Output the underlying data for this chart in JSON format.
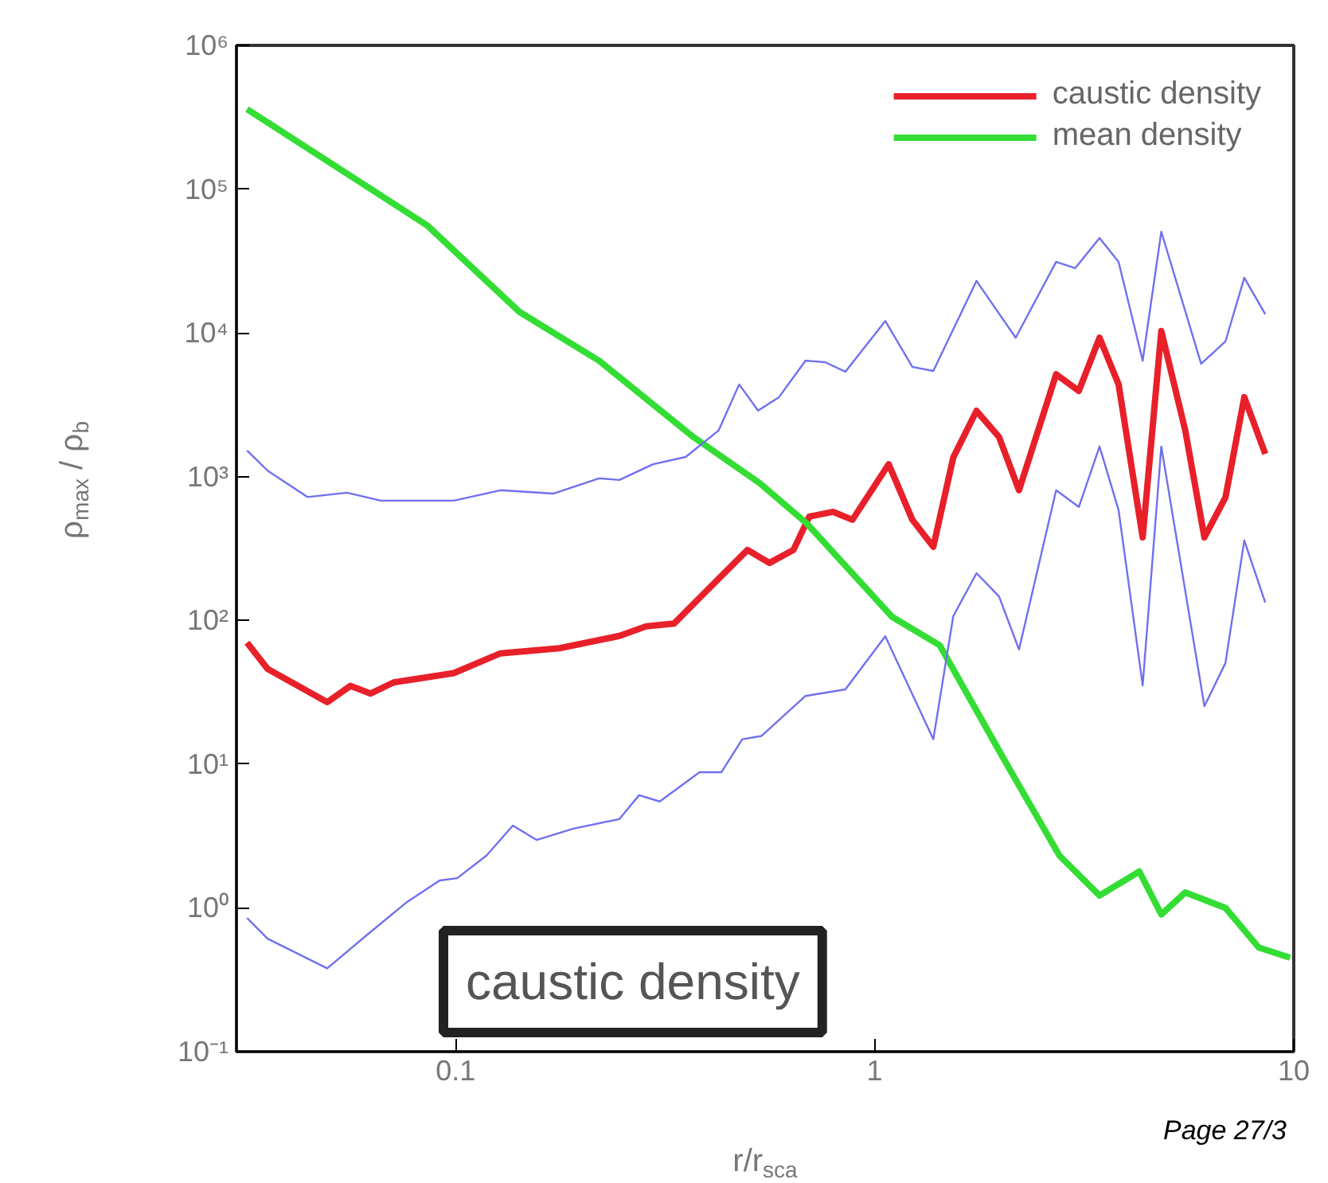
{
  "chart_data": {
    "type": "line",
    "xlabel": "r/r$_{sca}$",
    "ylabel": "ρ$_{max}$ / ρ$_{b}$",
    "log": "xy",
    "grid": false,
    "legend": "top right",
    "marker": "none",
    "line_style": "solid",
    "xlim": [
      0.03,
      10
    ],
    "ylim": [
      0.1,
      1000000
    ],
    "xticks": [
      0.1,
      1,
      10
    ],
    "yticks": [
      {
        "value": 0.1,
        "label": "10⁻¹"
      },
      {
        "value": 1,
        "label": "10⁰"
      },
      {
        "value": 10,
        "label": "10¹"
      },
      {
        "value": 100,
        "label": "10²"
      },
      {
        "value": 1000,
        "label": "10³"
      },
      {
        "value": 10000,
        "label": "10⁴"
      },
      {
        "value": 100000,
        "label": "10⁵"
      },
      {
        "value": 1000000,
        "label": "10⁶"
      }
    ],
    "annotations": [
      "caustic density",
      "Page 27/3"
    ],
    "series": [
      {
        "name": "caustic density",
        "color": "#e8202a",
        "x": [
          0.0318,
          0.0356,
          0.0494,
          0.0561,
          0.0627,
          0.0711,
          0.099,
          0.128,
          0.177,
          0.246,
          0.285,
          0.332,
          0.399,
          0.497,
          0.561,
          0.64,
          0.698,
          0.796,
          0.885,
          1.08,
          1.23,
          1.38,
          1.54,
          1.75,
          1.98,
          2.21,
          2.71,
          3.07,
          3.44,
          3.82,
          4.36,
          4.83,
          5.51,
          6.12,
          6.87,
          7.62,
          8.55
        ],
        "values": [
          70,
          46,
          27,
          35,
          31,
          37,
          43,
          59,
          64,
          78,
          91,
          95,
          163,
          309,
          251,
          309,
          527,
          569,
          501,
          1220,
          501,
          325,
          1360,
          2870,
          1890,
          804,
          5150,
          3950,
          9250,
          4380,
          378,
          10300,
          2090,
          378,
          716,
          3570,
          1440
        ]
      },
      {
        "name": "mean density",
        "color": "#33dd33",
        "x": [
          0.0318,
          0.0855,
          0.142,
          0.22,
          0.369,
          0.532,
          0.687,
          1.1,
          1.43,
          2.05,
          2.76,
          3.44,
          4.28,
          4.83,
          5.51,
          6.87,
          8.25,
          9.8
        ],
        "values": [
          360000,
          56000,
          14000,
          6400,
          1890,
          900,
          476,
          106,
          67,
          10.4,
          2.31,
          1.22,
          1.79,
          0.9,
          1.28,
          1.0,
          0.53,
          0.45
        ]
      },
      {
        "color": "#7070f0",
        "x": [
          0.0318,
          0.0356,
          0.0443,
          0.0551,
          0.0663,
          0.099,
          0.128,
          0.171,
          0.22,
          0.246,
          0.296,
          0.354,
          0.424,
          0.475,
          0.527,
          0.591,
          0.684,
          0.762,
          0.851,
          1.06,
          1.23,
          1.38,
          1.75,
          2.17,
          2.71,
          3.01,
          3.44,
          3.82,
          4.36,
          4.83,
          6.01,
          6.87,
          7.62,
          8.55
        ],
        "values": [
          1520,
          1100,
          721,
          773,
          681,
          681,
          804,
          762,
          973,
          948,
          1220,
          1370,
          2090,
          4380,
          2880,
          3570,
          6410,
          6250,
          5370,
          12100,
          5800,
          5430,
          23000,
          9250,
          31200,
          28200,
          45700,
          31200,
          6410,
          50600,
          6100,
          8710,
          24200,
          13500
        ]
      },
      {
        "color": "#7070f0",
        "x": [
          0.0318,
          0.0356,
          0.0494,
          0.0615,
          0.0766,
          0.0916,
          0.1009,
          0.1186,
          0.137,
          0.156,
          0.191,
          0.246,
          0.274,
          0.307,
          0.382,
          0.431,
          0.483,
          0.537,
          0.684,
          0.851,
          1.06,
          1.38,
          1.54,
          1.75,
          1.98,
          2.21,
          2.71,
          3.07,
          3.44,
          3.82,
          4.36,
          4.83,
          6.12,
          6.87,
          7.62,
          8.55
        ],
        "values": [
          0.85,
          0.61,
          0.38,
          0.65,
          1.1,
          1.55,
          1.61,
          2.32,
          3.74,
          2.97,
          3.56,
          4.15,
          6.08,
          5.5,
          8.79,
          8.79,
          14.9,
          15.7,
          29.8,
          33.1,
          77.6,
          14.9,
          107,
          213,
          147,
          62.7,
          804,
          615,
          1620,
          584,
          35.3,
          1620,
          25.3,
          50.5,
          360,
          133
        ]
      }
    ]
  }
}
